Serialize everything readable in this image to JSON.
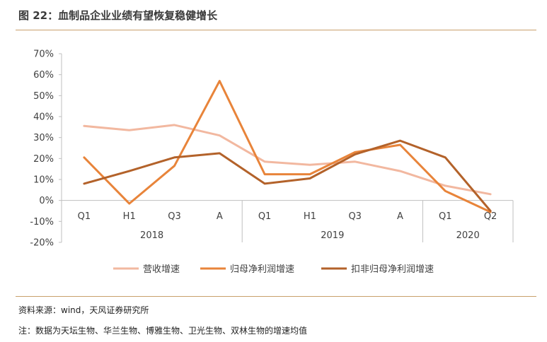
{
  "header": {
    "title": "图 22：血制品企业业绩有望恢复稳健增长"
  },
  "footer": {
    "source": "资料来源：wind，天风证券研究所",
    "note": "注：数据为天坛生物、华兰生物、博雅生物、卫光生物、双林生物的增速均值"
  },
  "chart_data": {
    "type": "line",
    "categories": [
      "Q1",
      "H1",
      "Q3",
      "A",
      "Q1",
      "H1",
      "Q3",
      "A",
      "Q1",
      "Q2"
    ],
    "groups": [
      {
        "label": "2018",
        "count": 4
      },
      {
        "label": "2019",
        "count": 4
      },
      {
        "label": "2020",
        "count": 2
      }
    ],
    "y_ticks": [
      "70%",
      "60%",
      "50%",
      "40%",
      "30%",
      "20%",
      "10%",
      "0%",
      "-10%",
      "-20%"
    ],
    "ylim": [
      -20,
      70
    ],
    "grid": false,
    "legend_position": "bottom",
    "series": [
      {
        "name": "营收增速",
        "color": "#f2b8a0",
        "values": [
          35.5,
          33.5,
          36,
          31,
          18.5,
          17,
          18.5,
          14,
          7,
          3
        ]
      },
      {
        "name": "归母净利润增速",
        "color": "#e8843a",
        "values": [
          20.5,
          -1.5,
          16.5,
          57,
          12.5,
          12.5,
          23,
          26.5,
          4.5,
          -5.5
        ]
      },
      {
        "name": "扣非归母净利润增速",
        "color": "#b3622a",
        "values": [
          8,
          14,
          20.5,
          22.5,
          8,
          10.5,
          22,
          28.5,
          20.5,
          -5
        ]
      }
    ]
  }
}
